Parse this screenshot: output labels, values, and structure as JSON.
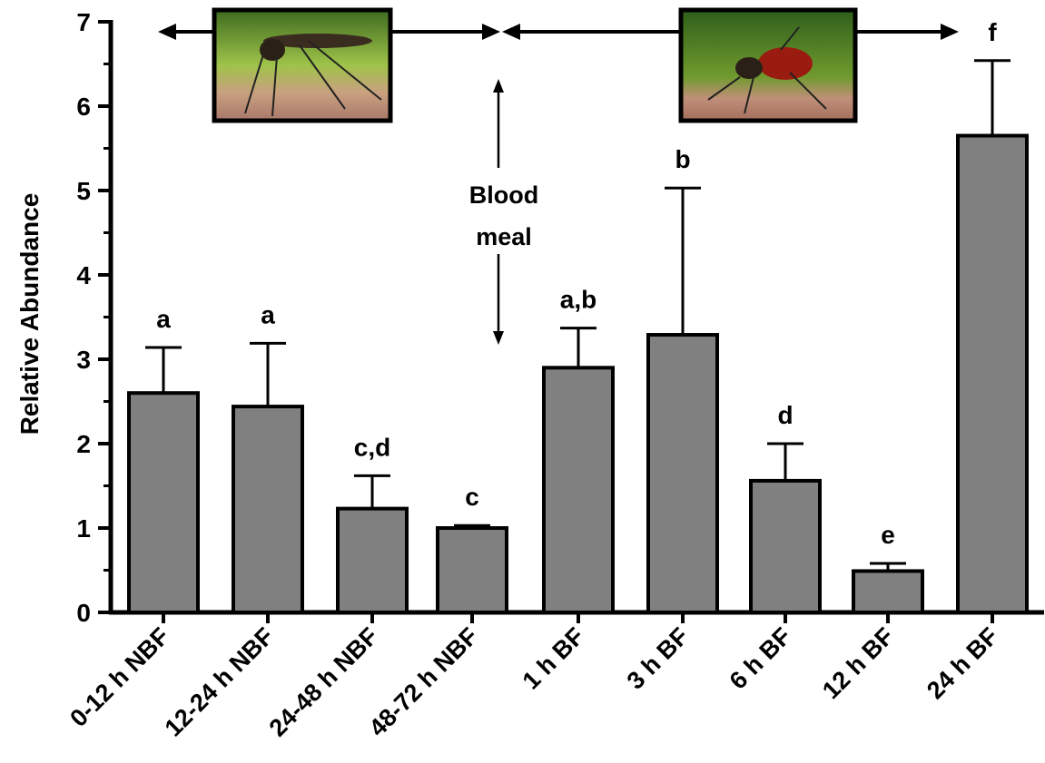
{
  "chart_data": {
    "type": "bar",
    "y_label": "Relative Abundance",
    "categories": [
      "0-12 h NBF",
      "12-24 h NBF",
      "24-48 h NBF",
      "48-72 h NBF",
      "1 h BF",
      "3 h BF",
      "6 h BF",
      "12 h BF",
      "24 h BF"
    ],
    "values": [
      2.6,
      2.44,
      1.23,
      1.0,
      2.9,
      3.29,
      1.56,
      0.49,
      5.65
    ],
    "errors": [
      0.54,
      0.75,
      0.39,
      0.03,
      0.47,
      1.74,
      0.44,
      0.09,
      0.89
    ],
    "significance_labels": [
      "a",
      "a",
      "c,d",
      "c",
      "a,b",
      "b",
      "d",
      "e",
      "f"
    ],
    "color": "#808080",
    "ylim": [
      0,
      7
    ],
    "yticks": [
      0,
      1,
      2,
      3,
      4,
      5,
      6,
      7
    ],
    "yminor_ticks": [
      0.5,
      1.5,
      2.5,
      3.5,
      4.5,
      5.5,
      6.5
    ],
    "annotation_lines": [
      "Blood",
      "meal"
    ]
  }
}
